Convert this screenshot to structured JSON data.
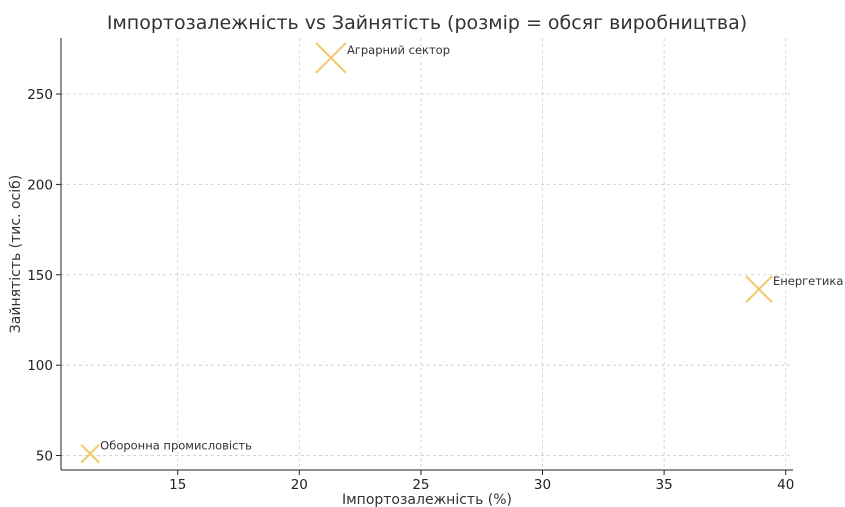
{
  "chart_data": {
    "type": "scatter",
    "title": "Імпортозалежність vs Зайнятість (розмір = обсяг виробництва)",
    "xlabel": "Імпортозалежність (%)",
    "ylabel": "Зайнятість (тис. осіб)",
    "xlim": [
      10.2,
      40.3
    ],
    "ylim": [
      42,
      281
    ],
    "xticks": [
      15,
      20,
      25,
      30,
      35,
      40
    ],
    "yticks": [
      50,
      100,
      150,
      200,
      250
    ],
    "grid": true,
    "marker": "x",
    "marker_color": "#f0c45a",
    "points": [
      {
        "label": "Аграрний сектор",
        "x": 21.3,
        "y": 270,
        "size": 30
      },
      {
        "label": "Енергетика",
        "x": 38.9,
        "y": 142,
        "size": 26
      },
      {
        "label": "Оборонна промисловість",
        "x": 11.4,
        "y": 51,
        "size": 18
      }
    ]
  }
}
